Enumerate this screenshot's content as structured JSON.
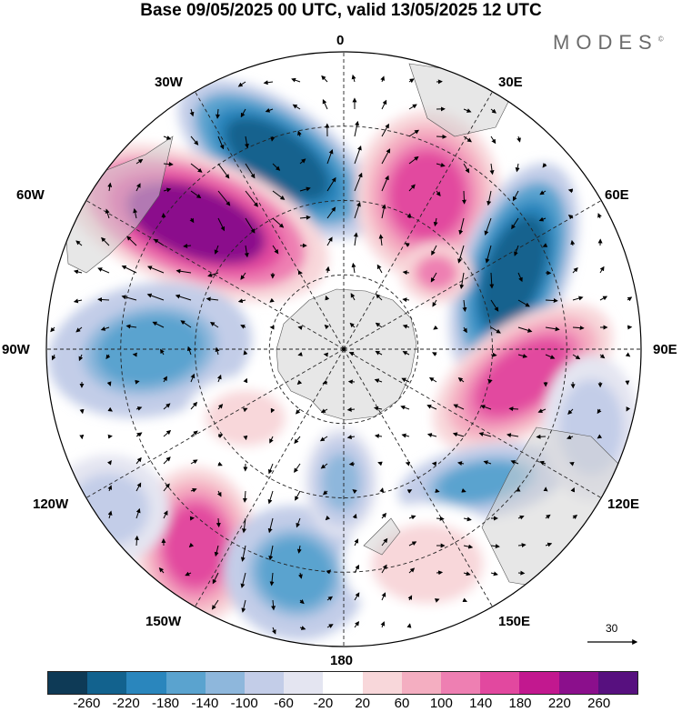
{
  "title": "Base 09/05/2025 00 UTC, valid 13/05/2025 12 UTC",
  "logo": {
    "text": "MODES",
    "mark": "©"
  },
  "longitude_labels": [
    "0",
    "30E",
    "60E",
    "90E",
    "120E",
    "150E",
    "180",
    "150W",
    "120W",
    "90W",
    "60W",
    "30W"
  ],
  "vector_reference": {
    "value": "30"
  },
  "colorbar": {
    "ticks": [
      "-260",
      "-220",
      "-180",
      "-140",
      "-100",
      "-60",
      "-20",
      "20",
      "60",
      "100",
      "140",
      "180",
      "220",
      "260"
    ],
    "colors": [
      "#0e3a56",
      "#12628e",
      "#2a86bd",
      "#5aa3cf",
      "#8eb7dc",
      "#c3cde8",
      "#e4e5f1",
      "#ffffff",
      "#f8d7da",
      "#f4aec1",
      "#ee7fb2",
      "#e2489f",
      "#c2188f",
      "#8b0f8c",
      "#57107f"
    ]
  },
  "chart_data": {
    "type": "heatmap",
    "projection": "south-polar-stereographic",
    "field": "anomaly shaded with wind vectors",
    "color_ranges": [
      -260,
      260
    ],
    "anomaly_centers": [
      {
        "lon": "10W",
        "sign": "negative",
        "peak": -220
      },
      {
        "lon": "30E",
        "sign": "positive",
        "peak": 180
      },
      {
        "lon": "65E",
        "sign": "negative",
        "peak": -220
      },
      {
        "lon": "95E",
        "sign": "positive",
        "peak": 180
      },
      {
        "lon": "125E",
        "sign": "negative",
        "peak": -140
      },
      {
        "lon": "55W",
        "sign": "positive",
        "peak": 240
      },
      {
        "lon": "85W",
        "sign": "negative",
        "peak": -140
      },
      {
        "lon": "145W",
        "sign": "positive",
        "peak": 180
      },
      {
        "lon": "165W",
        "sign": "negative",
        "peak": -140
      },
      {
        "lon": "180",
        "sign": "negative",
        "peak": -100
      }
    ]
  }
}
